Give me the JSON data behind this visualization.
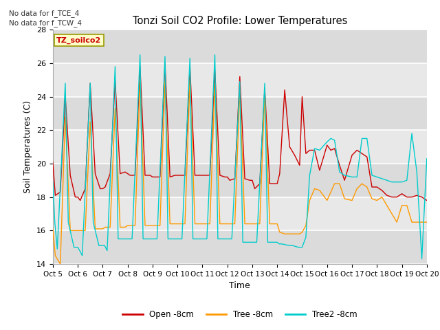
{
  "title": "Tonzi Soil CO2 Profile: Lower Temperatures",
  "xlabel": "Time",
  "ylabel": "Soil Temperatures (C)",
  "ylim": [
    14,
    28
  ],
  "yticks": [
    14,
    16,
    18,
    20,
    22,
    24,
    26,
    28
  ],
  "x_labels": [
    "Oct 5",
    "Oct 6",
    "Oct 7",
    "Oct 8",
    "Oct 9",
    "Oct 10",
    "Oct 11",
    "Oct 12",
    "Oct 13",
    "Oct 14",
    "Oct 15",
    "Oct 16",
    "Oct 17",
    "Oct 18",
    "Oct 19",
    "Oct 20"
  ],
  "no_data_text": [
    "No data for f_TCE_4",
    "No data for f_TCW_4"
  ],
  "dataset_label": "TZ_soilco2",
  "colors": {
    "open": "#cc0000",
    "tree": "#ff9900",
    "tree2": "#00cccc"
  },
  "legend_labels": [
    "Open -8cm",
    "Tree -8cm",
    "Tree2 -8cm"
  ],
  "open_x": [
    0.0,
    0.1,
    0.3,
    0.5,
    0.7,
    0.9,
    1.0,
    1.1,
    1.3,
    1.5,
    1.7,
    1.9,
    2.0,
    2.1,
    2.3,
    2.5,
    2.7,
    2.9,
    3.0,
    3.1,
    3.3,
    3.5,
    3.7,
    3.9,
    4.0,
    4.1,
    4.3,
    4.5,
    4.7,
    4.9,
    5.0,
    5.1,
    5.3,
    5.5,
    5.7,
    5.9,
    6.0,
    6.1,
    6.3,
    6.5,
    6.7,
    6.9,
    7.0,
    7.1,
    7.3,
    7.5,
    7.7,
    7.9,
    8.0,
    8.1,
    8.3,
    8.5,
    8.7,
    8.9,
    9.0,
    9.1,
    9.3,
    9.5,
    9.7,
    9.9,
    10.0,
    10.15,
    10.3,
    10.5,
    10.7,
    11.0,
    11.15,
    11.3,
    11.5,
    11.7,
    12.0,
    12.2,
    12.4,
    12.6,
    12.8,
    13.0,
    13.2,
    13.4,
    13.6,
    13.8,
    14.0,
    14.2,
    14.4,
    14.6,
    14.8,
    15.0
  ],
  "open_y": [
    20.1,
    18.1,
    18.3,
    24.0,
    19.3,
    18.0,
    18.0,
    17.8,
    18.5,
    24.8,
    19.4,
    18.5,
    18.5,
    18.6,
    19.4,
    25.0,
    19.4,
    19.5,
    19.4,
    19.3,
    19.3,
    25.8,
    19.3,
    19.3,
    19.2,
    19.2,
    19.2,
    26.0,
    19.2,
    19.3,
    19.3,
    19.3,
    19.3,
    25.8,
    19.3,
    19.3,
    19.3,
    19.3,
    19.3,
    25.6,
    19.3,
    19.2,
    19.2,
    19.0,
    19.1,
    25.2,
    19.1,
    19.0,
    19.0,
    18.5,
    18.8,
    24.5,
    18.8,
    18.8,
    18.8,
    19.4,
    24.4,
    21.0,
    20.5,
    19.9,
    24.0,
    20.6,
    20.8,
    20.8,
    19.6,
    21.1,
    20.8,
    20.9,
    19.9,
    19.0,
    20.5,
    20.8,
    20.6,
    20.4,
    18.6,
    18.6,
    18.4,
    18.1,
    18.0,
    18.0,
    18.2,
    18.0,
    18.0,
    18.1,
    18.0,
    17.8
  ],
  "tree_x": [
    0.0,
    0.1,
    0.3,
    0.5,
    0.7,
    0.9,
    1.0,
    1.1,
    1.3,
    1.5,
    1.7,
    1.9,
    2.0,
    2.1,
    2.3,
    2.5,
    2.7,
    2.9,
    3.0,
    3.1,
    3.3,
    3.5,
    3.7,
    3.9,
    4.0,
    4.1,
    4.3,
    4.5,
    4.7,
    4.9,
    5.0,
    5.1,
    5.3,
    5.5,
    5.7,
    5.9,
    6.0,
    6.1,
    6.3,
    6.5,
    6.7,
    6.9,
    7.0,
    7.1,
    7.3,
    7.5,
    7.7,
    7.9,
    8.0,
    8.1,
    8.3,
    8.5,
    8.7,
    8.9,
    9.0,
    9.1,
    9.3,
    9.5,
    9.7,
    9.9,
    10.0,
    10.15,
    10.3,
    10.5,
    10.7,
    11.0,
    11.15,
    11.3,
    11.5,
    11.7,
    12.0,
    12.2,
    12.4,
    12.6,
    12.8,
    13.0,
    13.2,
    13.4,
    13.6,
    13.8,
    14.0,
    14.2,
    14.4,
    14.6,
    14.8,
    15.0
  ],
  "tree_y": [
    16.1,
    14.5,
    14.0,
    22.8,
    16.0,
    16.0,
    16.0,
    16.0,
    16.0,
    22.5,
    16.1,
    16.1,
    16.1,
    16.2,
    16.2,
    23.3,
    16.2,
    16.2,
    16.3,
    16.3,
    16.3,
    24.9,
    16.3,
    16.3,
    16.3,
    16.3,
    16.3,
    24.9,
    16.4,
    16.4,
    16.4,
    16.4,
    16.4,
    25.0,
    16.4,
    16.4,
    16.4,
    16.4,
    16.4,
    24.8,
    16.4,
    16.4,
    16.4,
    16.4,
    16.4,
    24.4,
    16.4,
    16.4,
    16.4,
    16.4,
    16.4,
    24.3,
    16.4,
    16.4,
    16.4,
    15.9,
    15.8,
    15.8,
    15.8,
    15.8,
    15.9,
    16.3,
    17.8,
    18.5,
    18.4,
    17.8,
    18.3,
    18.8,
    18.8,
    17.9,
    17.8,
    18.5,
    18.8,
    18.6,
    17.9,
    17.8,
    18.0,
    17.5,
    17.0,
    16.5,
    17.5,
    17.5,
    16.5,
    16.5,
    16.5,
    16.5
  ],
  "tree2_x": [
    0.0,
    0.08,
    0.18,
    0.5,
    0.62,
    0.85,
    1.0,
    1.08,
    1.18,
    1.5,
    1.62,
    1.85,
    2.0,
    2.08,
    2.18,
    2.5,
    2.62,
    2.85,
    3.0,
    3.08,
    3.18,
    3.5,
    3.62,
    3.85,
    4.0,
    4.08,
    4.18,
    4.5,
    4.62,
    4.85,
    5.0,
    5.08,
    5.18,
    5.5,
    5.62,
    5.85,
    6.0,
    6.08,
    6.18,
    6.5,
    6.62,
    6.85,
    7.0,
    7.08,
    7.18,
    7.5,
    7.62,
    7.85,
    8.0,
    8.08,
    8.18,
    8.5,
    8.62,
    8.85,
    9.0,
    9.08,
    9.18,
    9.5,
    9.62,
    9.85,
    10.0,
    10.15,
    10.3,
    10.5,
    10.7,
    11.0,
    11.15,
    11.3,
    11.5,
    11.7,
    12.0,
    12.2,
    12.4,
    12.6,
    12.8,
    13.0,
    13.2,
    13.4,
    13.6,
    13.8,
    14.0,
    14.2,
    14.4,
    14.6,
    14.8,
    15.0
  ],
  "tree2_y": [
    18.9,
    16.5,
    14.9,
    24.8,
    16.5,
    15.0,
    15.0,
    14.8,
    14.5,
    24.8,
    16.5,
    15.1,
    15.1,
    15.1,
    14.8,
    25.8,
    15.5,
    15.5,
    15.5,
    15.5,
    15.5,
    26.5,
    15.5,
    15.5,
    15.5,
    15.5,
    15.5,
    26.4,
    15.5,
    15.5,
    15.5,
    15.5,
    15.5,
    26.3,
    15.5,
    15.5,
    15.5,
    15.5,
    15.5,
    26.5,
    15.5,
    15.5,
    15.5,
    15.5,
    15.5,
    24.9,
    15.3,
    15.3,
    15.3,
    15.3,
    15.3,
    24.8,
    15.3,
    15.3,
    15.3,
    15.2,
    15.2,
    15.1,
    15.1,
    15.0,
    15.0,
    15.6,
    19.3,
    20.9,
    20.8,
    21.3,
    21.5,
    21.4,
    19.5,
    19.3,
    19.2,
    19.2,
    21.5,
    21.5,
    19.3,
    19.2,
    19.1,
    19.0,
    18.9,
    18.9,
    18.9,
    19.0,
    21.8,
    19.5,
    14.3,
    20.3
  ]
}
